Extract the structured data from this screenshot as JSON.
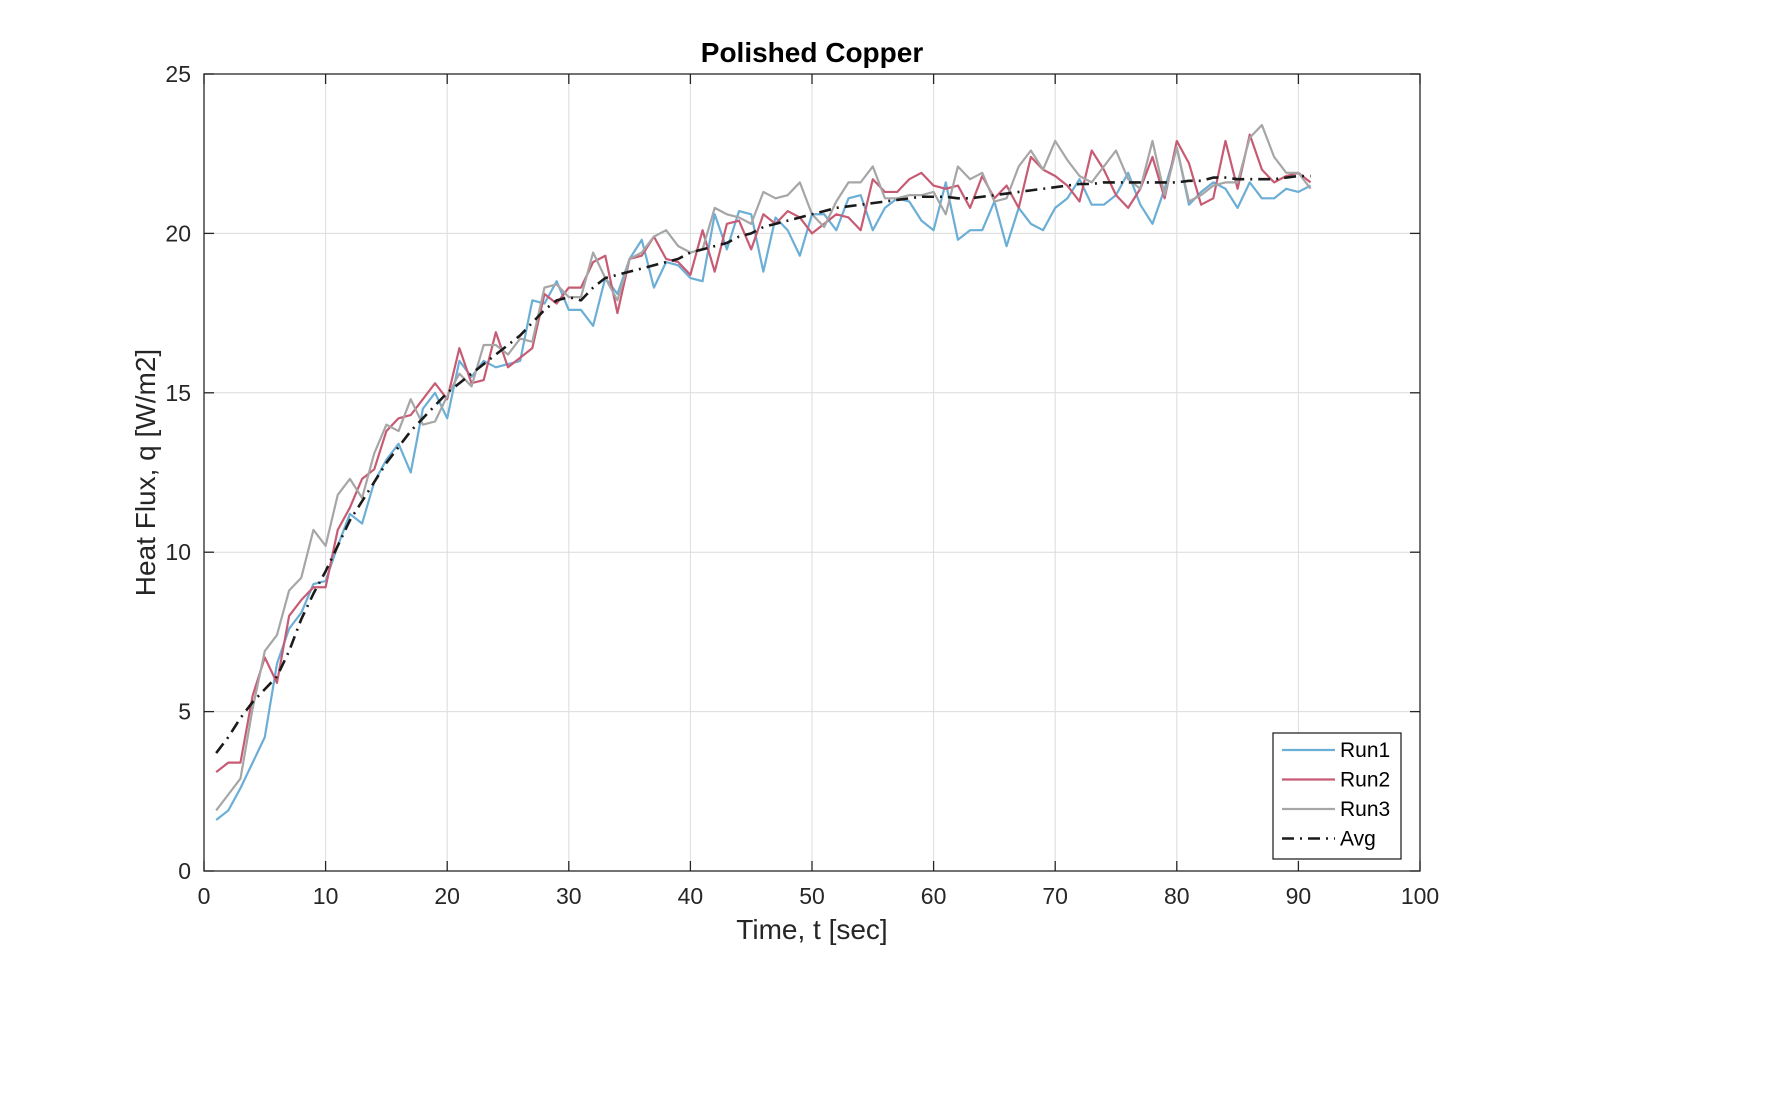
{
  "chart_data": {
    "type": "line",
    "title": "Polished Copper",
    "xlabel": "Time, t [sec]",
    "ylabel": "Heat Flux, q [W/m2]",
    "xlim": [
      0,
      100
    ],
    "ylim": [
      0,
      25
    ],
    "xticks": [
      0,
      10,
      20,
      30,
      40,
      50,
      60,
      70,
      80,
      90,
      100
    ],
    "yticks": [
      0,
      5,
      10,
      15,
      20,
      25
    ],
    "grid": true,
    "legend_position": "bottom-right",
    "x": [
      1,
      2,
      3,
      4,
      5,
      6,
      7,
      8,
      9,
      10,
      11,
      12,
      13,
      14,
      15,
      16,
      17,
      18,
      19,
      20,
      21,
      22,
      23,
      24,
      25,
      26,
      27,
      28,
      29,
      30,
      31,
      32,
      33,
      34,
      35,
      36,
      37,
      38,
      39,
      40,
      41,
      42,
      43,
      44,
      45,
      46,
      47,
      48,
      49,
      50,
      51,
      52,
      53,
      54,
      55,
      56,
      57,
      58,
      59,
      60,
      61,
      62,
      63,
      64,
      65,
      66,
      67,
      68,
      69,
      70,
      71,
      72,
      73,
      74,
      75,
      76,
      77,
      78,
      79,
      80,
      81,
      82,
      83,
      84,
      85,
      86,
      87,
      88,
      89,
      90,
      91
    ],
    "series": [
      {
        "name": "Run1",
        "color": "#6BAED6",
        "dash": "solid",
        "values": [
          1.6,
          1.9,
          2.6,
          3.4,
          4.2,
          6.5,
          7.6,
          8.1,
          9.0,
          9.1,
          10.2,
          11.2,
          10.9,
          12.2,
          12.9,
          13.4,
          12.5,
          14.5,
          15.0,
          14.2,
          16.0,
          15.5,
          16.0,
          15.8,
          15.9,
          16.0,
          17.9,
          17.8,
          18.5,
          17.6,
          17.6,
          17.1,
          18.6,
          18.1,
          19.2,
          19.8,
          18.3,
          19.1,
          19.0,
          18.6,
          18.5,
          20.6,
          19.5,
          20.7,
          20.6,
          18.8,
          20.5,
          20.1,
          19.3,
          20.6,
          20.6,
          20.1,
          21.1,
          21.2,
          20.1,
          20.8,
          21.1,
          21.0,
          20.4,
          20.1,
          21.6,
          19.8,
          20.1,
          20.1,
          21.0,
          19.6,
          20.8,
          20.3,
          20.1,
          20.8,
          21.1,
          21.7,
          20.9,
          20.9,
          21.2,
          21.9,
          20.9,
          20.3,
          21.4,
          22.7,
          20.9,
          21.3,
          21.6,
          21.4,
          20.8,
          21.6,
          21.1,
          21.1,
          21.4,
          21.3,
          21.5
        ]
      },
      {
        "name": "Run2",
        "color": "#C75B74",
        "dash": "solid",
        "values": [
          3.1,
          3.4,
          3.4,
          5.5,
          6.7,
          5.9,
          8.0,
          8.5,
          8.9,
          8.9,
          10.7,
          11.4,
          12.3,
          12.6,
          13.8,
          14.2,
          14.3,
          14.8,
          15.3,
          14.8,
          16.4,
          15.3,
          15.4,
          16.9,
          15.8,
          16.1,
          16.4,
          18.1,
          17.8,
          18.3,
          18.3,
          19.1,
          19.3,
          17.5,
          19.2,
          19.3,
          19.9,
          19.2,
          19.1,
          18.7,
          20.1,
          18.8,
          20.3,
          20.4,
          19.5,
          20.6,
          20.3,
          20.7,
          20.5,
          20.0,
          20.3,
          20.6,
          20.5,
          20.1,
          21.7,
          21.3,
          21.3,
          21.7,
          21.9,
          21.5,
          21.4,
          21.5,
          20.8,
          21.8,
          21.1,
          21.5,
          20.8,
          22.4,
          22.0,
          21.8,
          21.5,
          21.0,
          22.6,
          22.0,
          21.2,
          20.8,
          21.4,
          22.4,
          21.1,
          22.9,
          22.2,
          20.9,
          21.1,
          22.9,
          21.4,
          23.1,
          22.0,
          21.6,
          21.8,
          21.9,
          21.6
        ]
      },
      {
        "name": "Run3",
        "color": "#A6A6A6",
        "dash": "solid",
        "values": [
          1.9,
          2.4,
          2.9,
          5.1,
          6.9,
          7.4,
          8.8,
          9.2,
          10.7,
          10.2,
          11.8,
          12.3,
          11.7,
          13.1,
          14.0,
          13.8,
          14.8,
          14.0,
          14.1,
          14.9,
          15.6,
          15.2,
          16.5,
          16.5,
          16.2,
          16.7,
          16.6,
          18.3,
          18.4,
          18.0,
          18.0,
          19.4,
          18.6,
          17.9,
          19.2,
          19.4,
          19.9,
          20.1,
          19.6,
          19.4,
          19.5,
          20.8,
          20.6,
          20.5,
          20.3,
          21.3,
          21.1,
          21.2,
          21.6,
          20.6,
          20.2,
          21.0,
          21.6,
          21.6,
          22.1,
          21.1,
          21.1,
          21.2,
          21.2,
          21.3,
          20.6,
          22.1,
          21.7,
          21.9,
          21.0,
          21.1,
          22.1,
          22.6,
          22.0,
          22.9,
          22.3,
          21.8,
          21.6,
          22.1,
          22.6,
          21.7,
          21.4,
          22.9,
          21.2,
          22.7,
          21.0,
          21.2,
          21.5,
          21.6,
          21.6,
          23.0,
          23.4,
          22.4,
          21.9,
          21.9,
          21.4
        ]
      },
      {
        "name": "Avg",
        "color": "#1A1A1A",
        "dash": "dashdot",
        "values": [
          3.7,
          4.2,
          4.8,
          5.3,
          5.7,
          6.1,
          6.9,
          7.9,
          8.7,
          9.4,
          10.2,
          11.0,
          11.6,
          12.2,
          12.8,
          13.3,
          13.8,
          14.2,
          14.6,
          15.0,
          15.3,
          15.6,
          15.9,
          16.2,
          16.5,
          16.8,
          17.2,
          17.6,
          17.9,
          18.0,
          17.9,
          18.3,
          18.6,
          18.7,
          18.8,
          18.9,
          19.0,
          19.1,
          19.2,
          19.4,
          19.5,
          19.6,
          19.7,
          19.9,
          20.0,
          20.2,
          20.3,
          20.4,
          20.5,
          20.6,
          20.7,
          20.8,
          20.85,
          20.9,
          20.95,
          21.0,
          21.05,
          21.1,
          21.15,
          21.15,
          21.15,
          21.1,
          21.1,
          21.15,
          21.2,
          21.25,
          21.3,
          21.35,
          21.4,
          21.45,
          21.5,
          21.55,
          21.55,
          21.6,
          21.6,
          21.6,
          21.6,
          21.6,
          21.6,
          21.6,
          21.65,
          21.65,
          21.75,
          21.75,
          21.7,
          21.7,
          21.7,
          21.7,
          21.75,
          21.8,
          21.8
        ]
      }
    ]
  }
}
